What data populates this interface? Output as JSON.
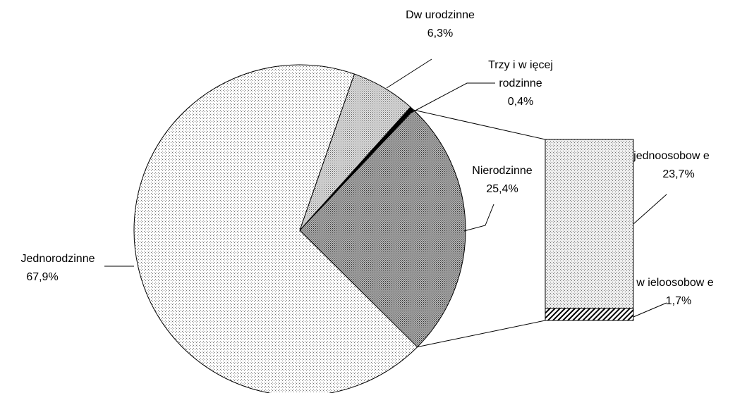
{
  "chart_data": {
    "type": "pie",
    "categories": [
      "Jednorodzinne",
      "Dw urodzinne",
      "Trzy i w ięcej rodzinne",
      "Nierodzinne"
    ],
    "values": [
      67.9,
      6.3,
      0.4,
      25.4
    ],
    "value_labels": [
      "67,9%",
      "6,3%",
      "0,4%",
      "25,4%"
    ],
    "breakdown": {
      "categories": [
        "jednoosobow e",
        "w ieloosobow e"
      ],
      "values": [
        23.7,
        1.7
      ],
      "value_labels": [
        "23,7%",
        "1,7%"
      ]
    }
  }
}
